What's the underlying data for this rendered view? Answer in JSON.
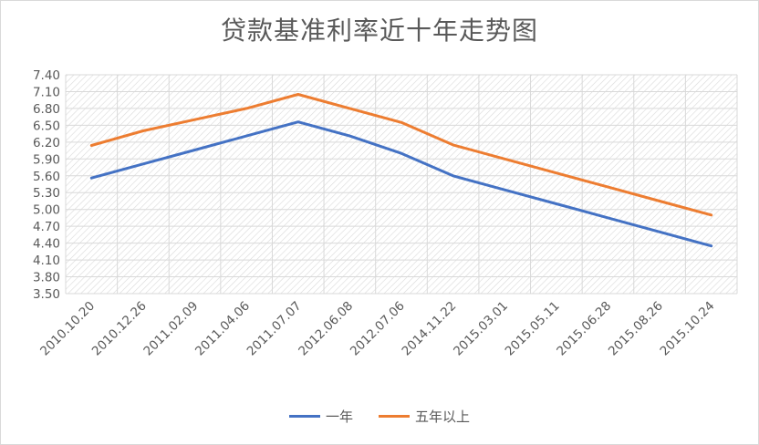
{
  "chart_data": {
    "type": "line",
    "title": "贷款基准利率近十年走势图",
    "xlabel": "",
    "ylabel": "",
    "categories": [
      "2010.10.20",
      "2010.12.26",
      "2011.02.09",
      "2011.04.06",
      "2011.07.07",
      "2012.06.08",
      "2012.07.06",
      "2014.11.22",
      "2015.03.01",
      "2015.05.11",
      "2015.06.28",
      "2015.08.26",
      "2015.10.24"
    ],
    "series": [
      {
        "name": "一年",
        "color": "#4472c4",
        "values": [
          5.56,
          5.81,
          6.06,
          6.31,
          6.56,
          6.31,
          6.0,
          5.6,
          5.35,
          5.1,
          4.85,
          4.6,
          4.35
        ]
      },
      {
        "name": "五年以上",
        "color": "#ed7d31",
        "values": [
          6.14,
          6.4,
          6.6,
          6.8,
          7.05,
          6.8,
          6.55,
          6.15,
          5.9,
          5.65,
          5.4,
          5.15,
          4.9
        ]
      }
    ],
    "ylim": [
      3.5,
      7.4
    ],
    "yticks": [
      "7.40",
      "7.10",
      "6.80",
      "6.50",
      "6.20",
      "5.90",
      "5.60",
      "5.30",
      "5.00",
      "4.70",
      "4.40",
      "4.10",
      "3.80",
      "3.50"
    ],
    "grid": true,
    "legend_position": "bottom"
  }
}
